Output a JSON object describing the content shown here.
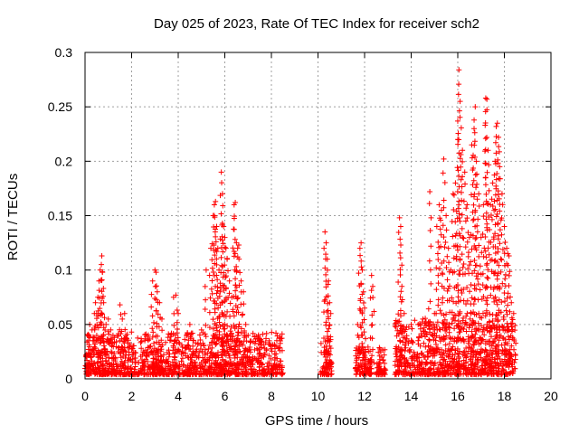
{
  "chart_data": {
    "type": "scatter",
    "title": "Day 025 of 2023, Rate Of TEC Index for receiver sch2",
    "xlabel": "GPS time / hours",
    "ylabel": "ROTI / TECUs",
    "xlim": [
      0,
      20
    ],
    "ylim": [
      0,
      0.3
    ],
    "xticks": [
      "0",
      "2",
      "4",
      "6",
      "8",
      "10",
      "12",
      "14",
      "16",
      "18",
      "20"
    ],
    "yticks": [
      "0",
      "0.05",
      "0.1",
      "0.15",
      "0.2",
      "0.25",
      "0.3"
    ],
    "grid": true,
    "marker": "plus",
    "color": "#ff0000",
    "segments": [
      {
        "x_start": 0.0,
        "x_end": 8.5,
        "base_max": 0.03
      },
      {
        "x_start": 10.1,
        "x_end": 10.6,
        "base_max": 0.025
      },
      {
        "x_start": 11.6,
        "x_end": 12.3,
        "base_max": 0.02
      },
      {
        "x_start": 12.5,
        "x_end": 12.9,
        "base_max": 0.02
      },
      {
        "x_start": 13.3,
        "x_end": 18.5,
        "base_max": 0.04
      }
    ],
    "points": [
      [
        0.1,
        0.04
      ],
      [
        0.15,
        0.035
      ],
      [
        0.2,
        0.05
      ],
      [
        0.3,
        0.045
      ],
      [
        0.4,
        0.06
      ],
      [
        0.45,
        0.07
      ],
      [
        0.5,
        0.06
      ],
      [
        0.55,
        0.075
      ],
      [
        0.6,
        0.09
      ],
      [
        0.65,
        0.1
      ],
      [
        0.7,
        0.105
      ],
      [
        0.72,
        0.113
      ],
      [
        0.75,
        0.098
      ],
      [
        0.8,
        0.07
      ],
      [
        0.9,
        0.05
      ],
      [
        1.0,
        0.055
      ],
      [
        1.1,
        0.045
      ],
      [
        1.2,
        0.04
      ],
      [
        1.5,
        0.068
      ],
      [
        1.6,
        0.055
      ],
      [
        1.7,
        0.06
      ],
      [
        2.9,
        0.09
      ],
      [
        3.0,
        0.1
      ],
      [
        3.05,
        0.098
      ],
      [
        3.1,
        0.08
      ],
      [
        3.2,
        0.07
      ],
      [
        3.3,
        0.055
      ],
      [
        3.8,
        0.075
      ],
      [
        3.9,
        0.077
      ],
      [
        4.0,
        0.06
      ],
      [
        4.5,
        0.05
      ],
      [
        5.0,
        0.045
      ],
      [
        5.2,
        0.1
      ],
      [
        5.4,
        0.12
      ],
      [
        5.5,
        0.15
      ],
      [
        5.55,
        0.16
      ],
      [
        5.6,
        0.163
      ],
      [
        5.65,
        0.14
      ],
      [
        5.7,
        0.12
      ],
      [
        5.75,
        0.1
      ],
      [
        5.8,
        0.08
      ],
      [
        5.85,
        0.19
      ],
      [
        5.9,
        0.17
      ],
      [
        5.95,
        0.14
      ],
      [
        6.0,
        0.13
      ],
      [
        6.05,
        0.12
      ],
      [
        6.1,
        0.11
      ],
      [
        6.2,
        0.09
      ],
      [
        6.3,
        0.075
      ],
      [
        6.4,
        0.16
      ],
      [
        6.45,
        0.162
      ],
      [
        6.5,
        0.125
      ],
      [
        6.55,
        0.12
      ],
      [
        6.6,
        0.123
      ],
      [
        6.7,
        0.09
      ],
      [
        6.8,
        0.08
      ],
      [
        6.9,
        0.05
      ],
      [
        7.0,
        0.04
      ],
      [
        7.5,
        0.035
      ],
      [
        8.0,
        0.03
      ],
      [
        8.3,
        0.028
      ],
      [
        10.3,
        0.135
      ],
      [
        10.35,
        0.125
      ],
      [
        10.4,
        0.11
      ],
      [
        10.45,
        0.09
      ],
      [
        10.5,
        0.07
      ],
      [
        10.55,
        0.06
      ],
      [
        11.7,
        0.05
      ],
      [
        11.8,
        0.12
      ],
      [
        11.85,
        0.125
      ],
      [
        11.9,
        0.1
      ],
      [
        11.95,
        0.08
      ],
      [
        12.0,
        0.065
      ],
      [
        12.3,
        0.095
      ],
      [
        12.35,
        0.085
      ],
      [
        13.5,
        0.148
      ],
      [
        13.55,
        0.14
      ],
      [
        13.6,
        0.085
      ],
      [
        13.7,
        0.06
      ],
      [
        14.0,
        0.05
      ],
      [
        14.3,
        0.05
      ],
      [
        14.5,
        0.055
      ],
      [
        14.8,
        0.172
      ],
      [
        15.0,
        0.06
      ],
      [
        15.1,
        0.14
      ],
      [
        15.2,
        0.16
      ],
      [
        15.3,
        0.155
      ],
      [
        15.4,
        0.202
      ],
      [
        15.5,
        0.15
      ],
      [
        15.6,
        0.12
      ],
      [
        15.7,
        0.1
      ],
      [
        15.8,
        0.17
      ],
      [
        15.9,
        0.18
      ],
      [
        16.0,
        0.22
      ],
      [
        16.05,
        0.284
      ],
      [
        16.1,
        0.255
      ],
      [
        16.2,
        0.21
      ],
      [
        16.3,
        0.19
      ],
      [
        16.4,
        0.16
      ],
      [
        16.5,
        0.13
      ],
      [
        16.6,
        0.215
      ],
      [
        16.7,
        0.23
      ],
      [
        16.75,
        0.25
      ],
      [
        16.8,
        0.2
      ],
      [
        16.9,
        0.17
      ],
      [
        17.0,
        0.13
      ],
      [
        17.1,
        0.16
      ],
      [
        17.2,
        0.258
      ],
      [
        17.25,
        0.257
      ],
      [
        17.3,
        0.21
      ],
      [
        17.4,
        0.16
      ],
      [
        17.5,
        0.18
      ],
      [
        17.6,
        0.2
      ],
      [
        17.65,
        0.232
      ],
      [
        17.7,
        0.235
      ],
      [
        17.75,
        0.222
      ],
      [
        17.8,
        0.195
      ],
      [
        17.9,
        0.17
      ],
      [
        18.0,
        0.14
      ],
      [
        18.1,
        0.12
      ],
      [
        18.15,
        0.115
      ],
      [
        18.2,
        0.113
      ],
      [
        18.3,
        0.07
      ],
      [
        18.4,
        0.06
      ]
    ]
  }
}
